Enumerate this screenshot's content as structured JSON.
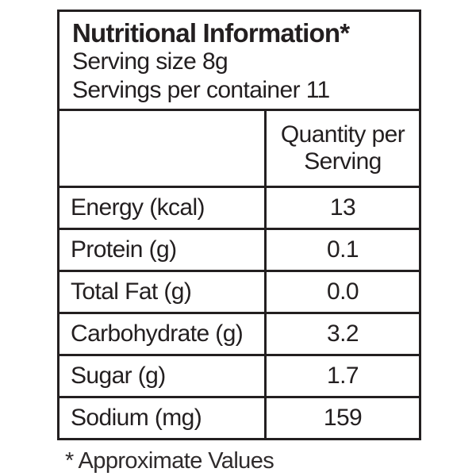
{
  "label_panel": {
    "title": "Nutritional Information*",
    "serving_size": "Serving size 8g",
    "servings_per_container": "Servings per container 11",
    "quantity_header": "Quantity per Serving",
    "rows": [
      {
        "label": "Energy (kcal)",
        "value": "13"
      },
      {
        "label": "Protein (g)",
        "value": "0.1"
      },
      {
        "label": "Total Fat (g)",
        "value": "0.0"
      },
      {
        "label": "Carbohydrate (g)",
        "value": "3.2"
      },
      {
        "label": "Sugar (g)",
        "value": "1.7"
      },
      {
        "label": "Sodium (mg)",
        "value": "159"
      }
    ],
    "footnote": "* Approximate Values",
    "colors": {
      "text": "#231f20",
      "border": "#231f20",
      "background": "#ffffff"
    }
  }
}
